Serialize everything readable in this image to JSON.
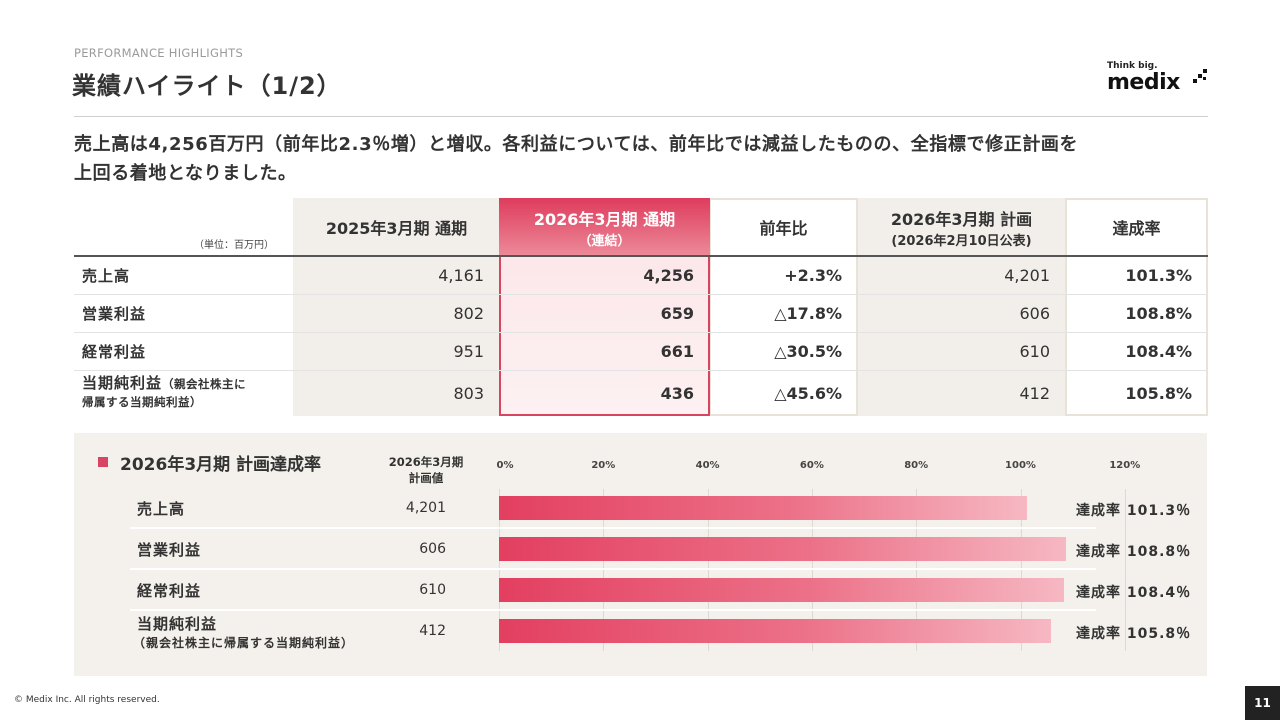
{
  "header": {
    "eyebrow": "PERFORMANCE HIGHLIGHTS",
    "title": "業績ハイライト（1/2）",
    "logo_tag": "Think big.",
    "logo_word": "medix"
  },
  "lead": {
    "line1": "売上高は4,256百万円（前年比2.3％増）と増収。各利益については、前年比では減益したものの、全指標で修正計画を",
    "line2": "上回る着地となりました。"
  },
  "table": {
    "unit": "（単位：百万円）",
    "headers": [
      {
        "l1": "2025年3月期 通期",
        "l2": ""
      },
      {
        "l1": "2026年3月期 通期",
        "l2": "（連結）"
      },
      {
        "l1": "前年比",
        "l2": ""
      },
      {
        "l1": "2026年3月期 計画",
        "l2": "(2026年2月10日公表)"
      },
      {
        "l1": "達成率",
        "l2": ""
      }
    ],
    "rows": [
      {
        "label": "売上高",
        "label_sub": "",
        "label2": "",
        "fy2025": "4,161",
        "fy2026": "4,256",
        "yoy": "+2.3%",
        "plan": "4,201",
        "rate": "101.3%"
      },
      {
        "label": "営業利益",
        "label_sub": "",
        "label2": "",
        "fy2025": "802",
        "fy2026": "659",
        "yoy": "△17.8%",
        "plan": "606",
        "rate": "108.8%"
      },
      {
        "label": "経常利益",
        "label_sub": "",
        "label2": "",
        "fy2025": "951",
        "fy2026": "661",
        "yoy": "△30.5%",
        "plan": "610",
        "rate": "108.4%"
      },
      {
        "label": "当期純利益",
        "label_sub": "（親会社株主に",
        "label2": "帰属する当期純利益）",
        "fy2025": "803",
        "fy2026": "436",
        "yoy": "△45.6%",
        "plan": "412",
        "rate": "105.8%"
      }
    ]
  },
  "chart_panel": {
    "title": "2026年3月期  計画達成率",
    "plan_header_1": "2026年3月期",
    "plan_header_2": "計画値",
    "rate_prefix": "達成率"
  },
  "chart_data": {
    "type": "bar",
    "orientation": "horizontal",
    "title": "2026年3月期  計画達成率",
    "xlim": [
      0,
      120
    ],
    "x_ticks": [
      "0%",
      "20%",
      "40%",
      "60%",
      "80%",
      "100%",
      "120%"
    ],
    "grid": true,
    "categories": [
      "売上高",
      "営業利益",
      "経常利益",
      "当期純利益"
    ],
    "category_sublabels": [
      "",
      "",
      "",
      "（親会社株主に帰属する当期純利益）"
    ],
    "plan_values": [
      "4,201",
      "606",
      "610",
      "412"
    ],
    "values": [
      101.3,
      108.8,
      108.4,
      105.8
    ],
    "value_labels": [
      "101.3％",
      "108.8％",
      "108.4％",
      "105.8％"
    ],
    "bar_color": "#e33f60"
  },
  "footer": {
    "copyright": "© Medix Inc. All rights reserved.",
    "page": "11"
  }
}
